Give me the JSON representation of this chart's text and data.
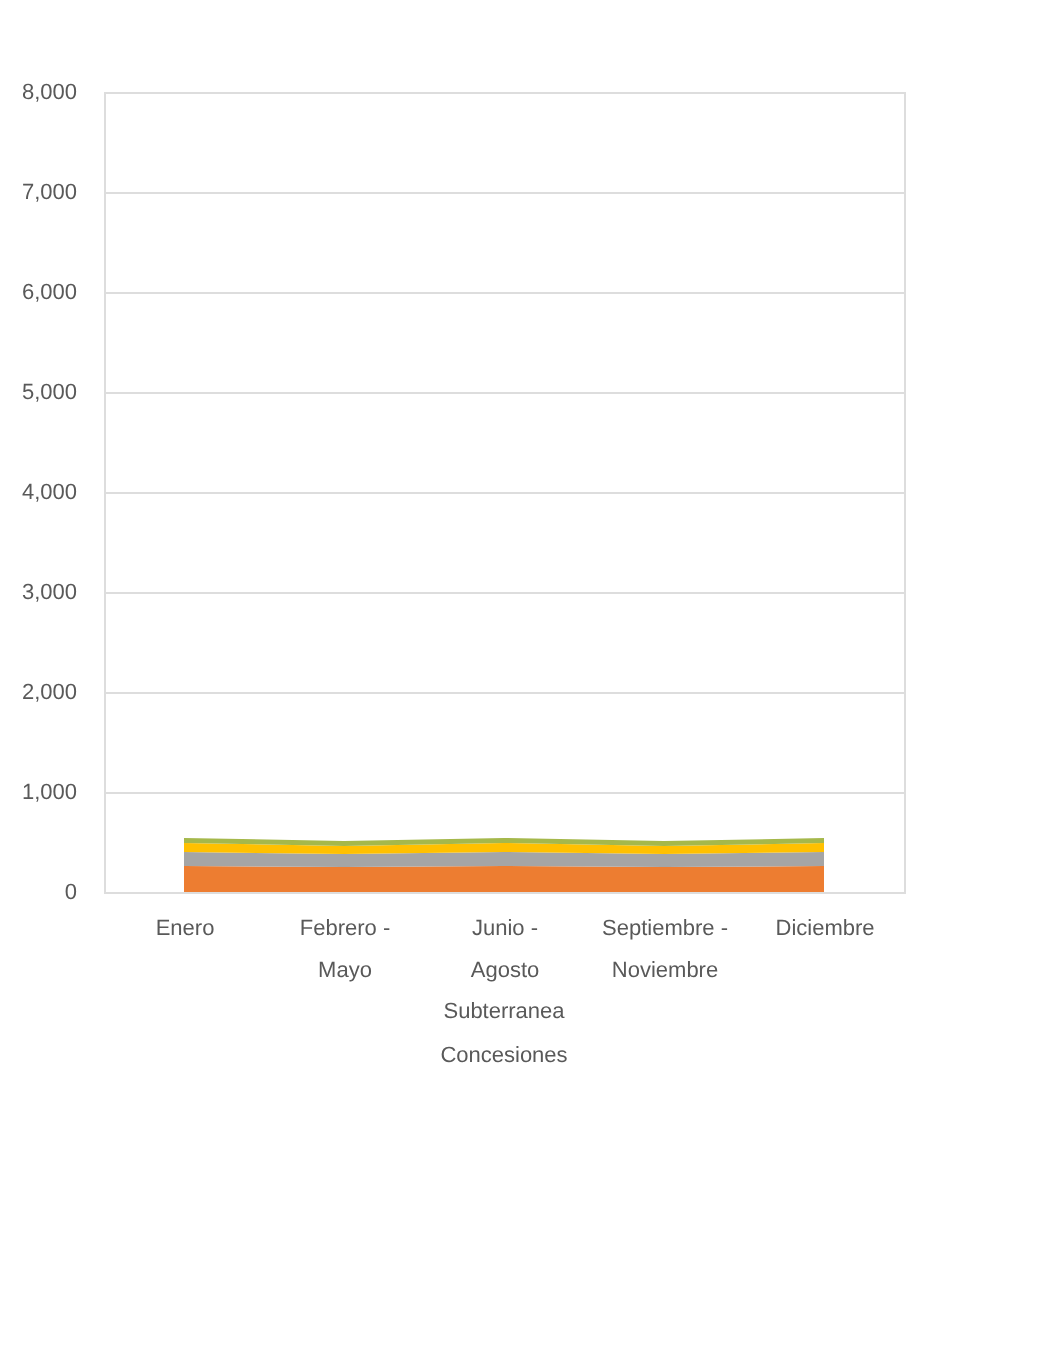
{
  "chart_data": {
    "type": "area",
    "stacked": true,
    "categories": [
      "Enero",
      "Febrero - Mayo",
      "Junio - Agosto",
      "Septiembre - Noviembre",
      "Diciembre"
    ],
    "series": [
      {
        "color": "#ed7d31",
        "values": [
          260,
          250,
          260,
          250,
          260
        ]
      },
      {
        "color": "#a5a5a5",
        "values": [
          140,
          130,
          140,
          130,
          140
        ]
      },
      {
        "color": "#ffc000",
        "values": [
          90,
          80,
          90,
          80,
          90
        ]
      },
      {
        "color": "#a5b84b",
        "values": [
          50,
          50,
          50,
          50,
          50
        ]
      }
    ],
    "ylim": [
      0,
      8000
    ],
    "yticks": [
      0,
      {
        "value": 1000,
        "label": "1,000"
      },
      {
        "value": 2000,
        "label": "2,000"
      },
      {
        "value": 3000,
        "label": "3,000"
      },
      {
        "value": 4000,
        "label": "4,000"
      },
      {
        "value": 5000,
        "label": "5,000"
      },
      {
        "value": 6000,
        "label": "6,000"
      },
      {
        "value": 7000,
        "label": "7,000"
      },
      {
        "value": 8000,
        "label": "8,000"
      }
    ],
    "grid": "y",
    "legend": false,
    "annotations": [
      "Subterranea",
      "Concesiones"
    ]
  }
}
